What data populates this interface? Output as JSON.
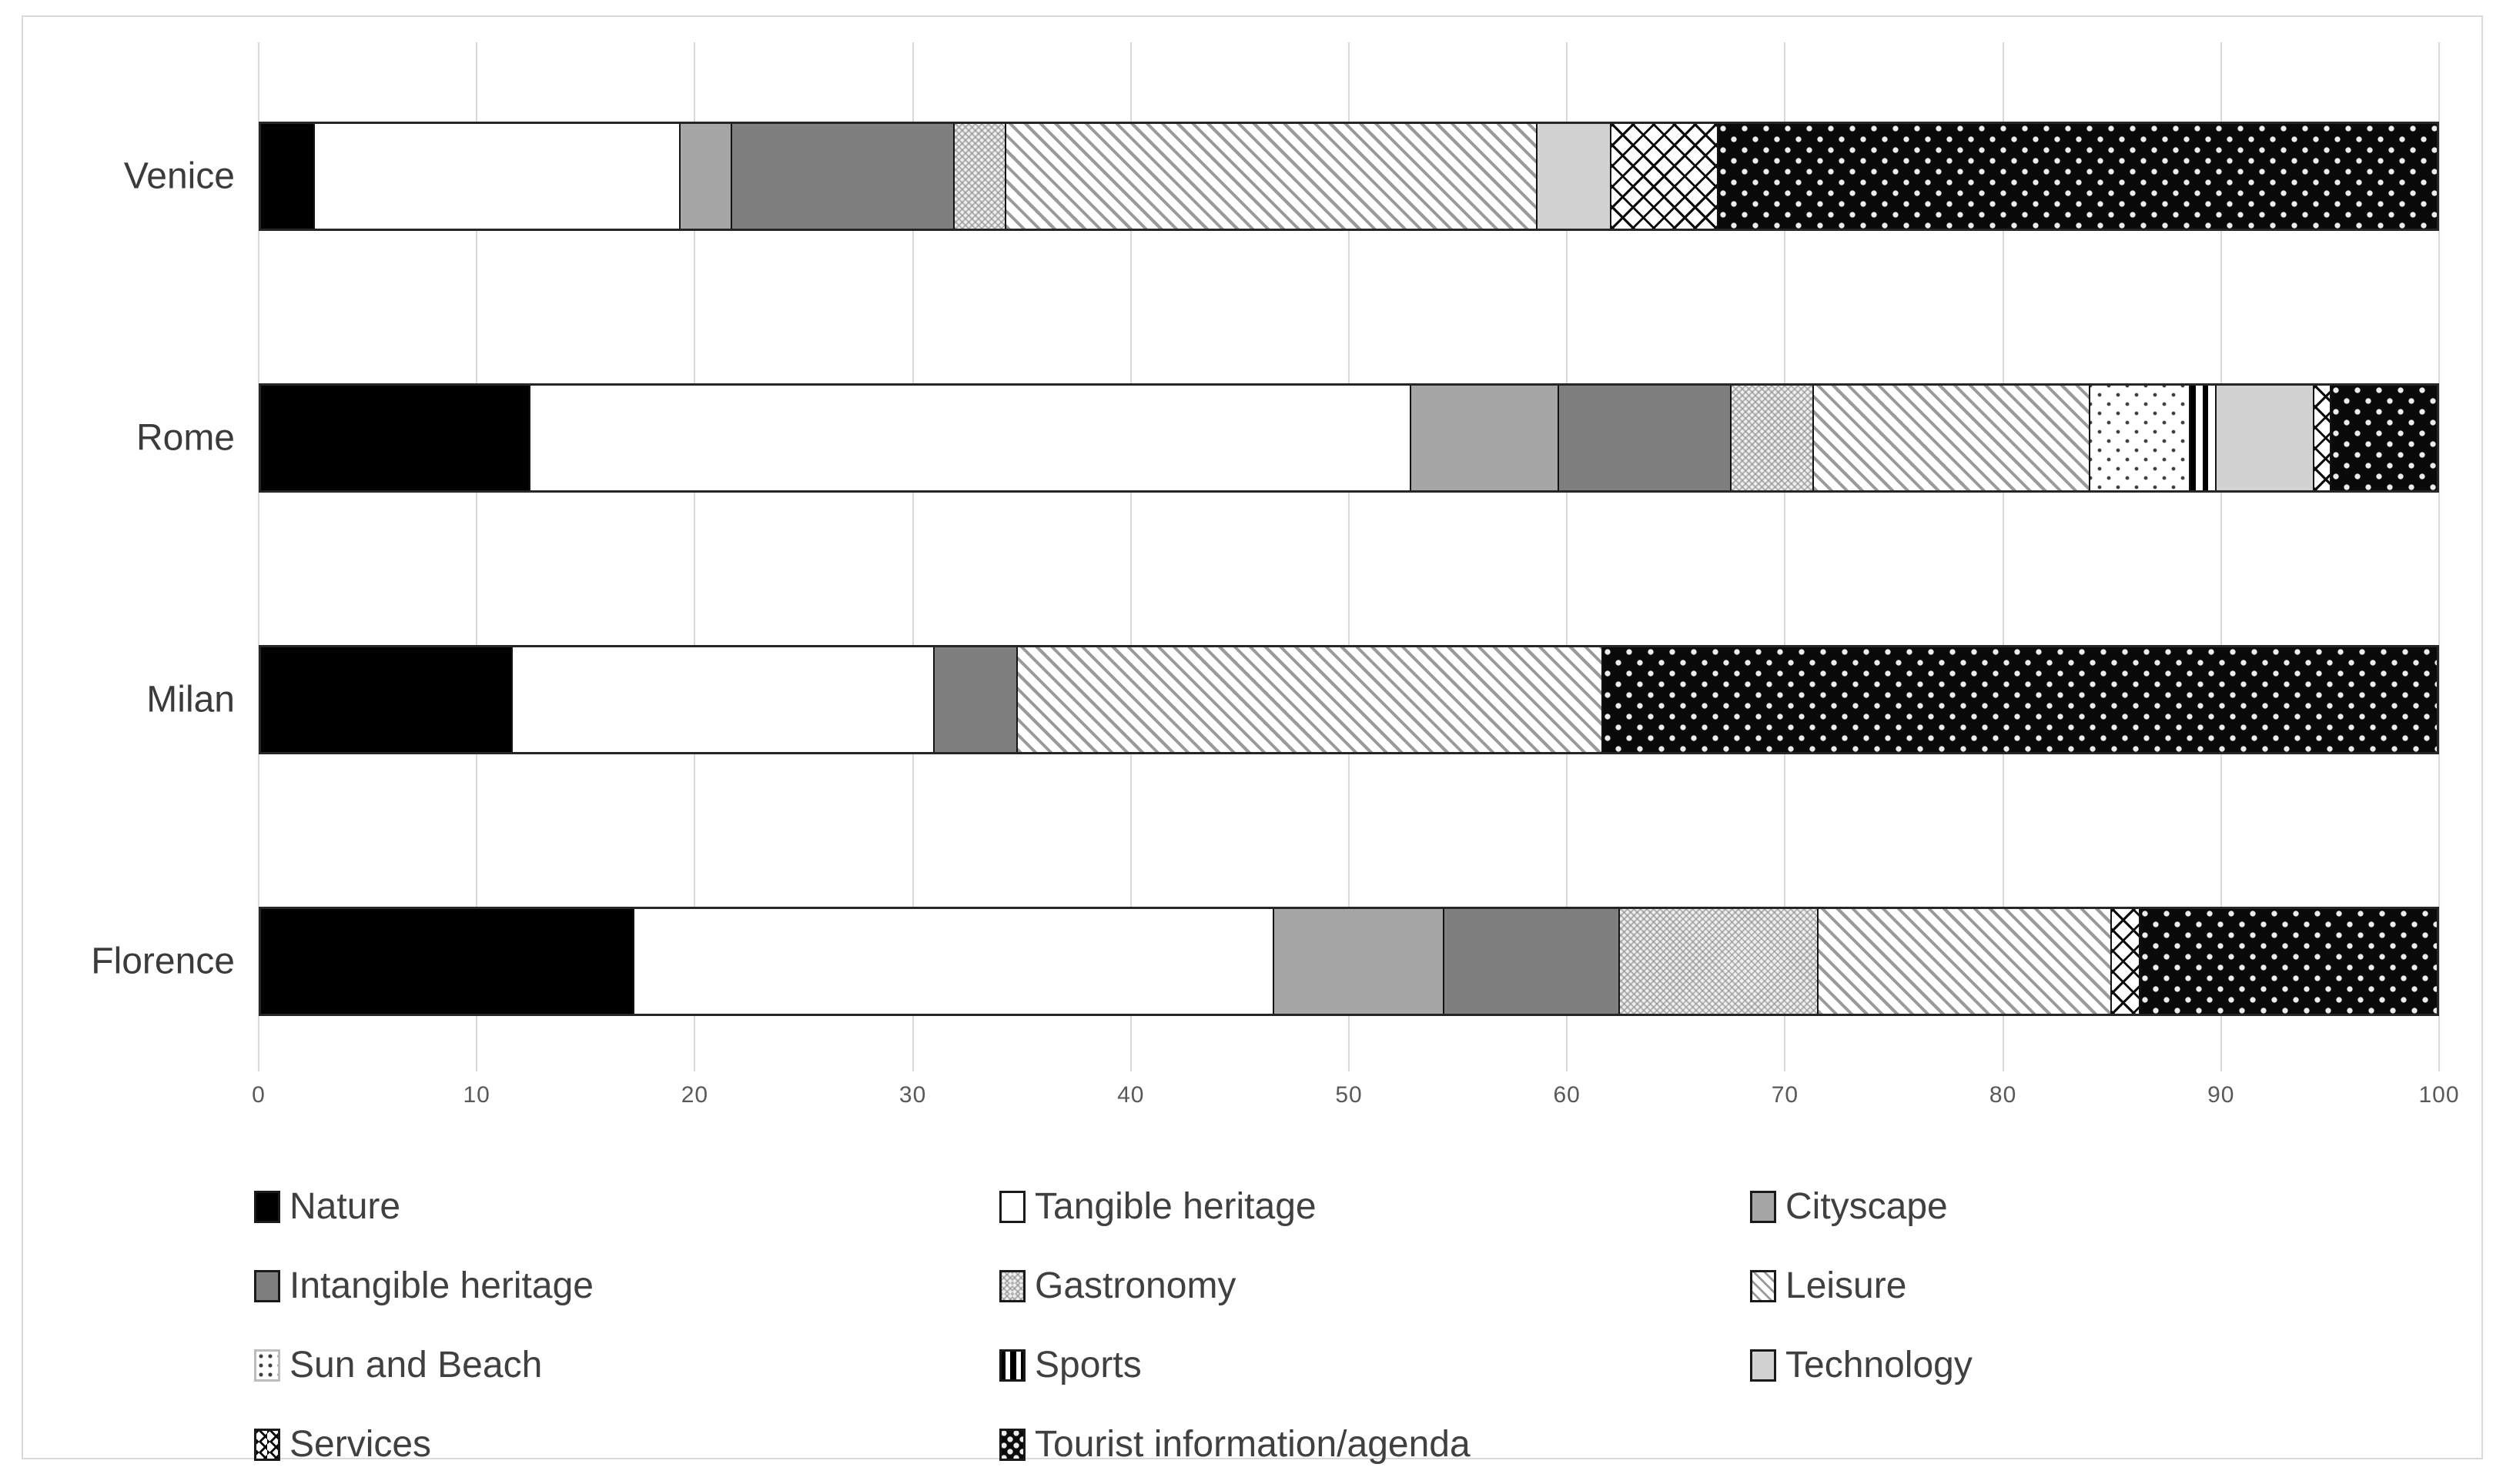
{
  "chart_data": {
    "type": "bar",
    "subtype": "horizontal-stacked-100",
    "title": "",
    "xlabel": "",
    "ylabel": "",
    "categories": [
      "Venice",
      "Rome",
      "Milan",
      "Florence"
    ],
    "series": [
      {
        "name": "Nature",
        "pattern": "nature",
        "values": [
          2.4,
          12.3,
          11.5,
          17.1
        ]
      },
      {
        "name": "Tangible heritage",
        "pattern": "tangible",
        "values": [
          16.8,
          40.5,
          19.4,
          29.4
        ]
      },
      {
        "name": "Cityscape",
        "pattern": "cityscape",
        "values": [
          2.4,
          6.8,
          0,
          7.8
        ]
      },
      {
        "name": "Intangible heritage",
        "pattern": "intangible",
        "values": [
          10.2,
          7.9,
          3.8,
          8.1
        ]
      },
      {
        "name": "Gastronomy",
        "pattern": "gastronomy",
        "values": [
          2.4,
          3.8,
          0,
          9.1
        ]
      },
      {
        "name": "Leisure",
        "pattern": "leisure",
        "values": [
          24.4,
          12.7,
          26.9,
          13.5
        ]
      },
      {
        "name": "Sun and Beach",
        "pattern": "sunbeach",
        "values": [
          0,
          4.6,
          0,
          0
        ]
      },
      {
        "name": "Sports",
        "pattern": "sports",
        "values": [
          0,
          1.2,
          0,
          0
        ]
      },
      {
        "name": "Technology",
        "pattern": "technology",
        "values": [
          3.4,
          4.5,
          0,
          0
        ]
      },
      {
        "name": "Services",
        "pattern": "services",
        "values": [
          4.9,
          0.8,
          0,
          1.3
        ]
      },
      {
        "name": "Tourist information/agenda",
        "pattern": "tourist",
        "values": [
          33.1,
          4.9,
          38.4,
          13.7
        ]
      }
    ],
    "x_axis": {
      "min": 0,
      "max": 100,
      "tick_step": 10,
      "ticks": [
        0,
        10,
        20,
        30,
        40,
        50,
        60,
        70,
        80,
        90,
        100
      ]
    },
    "grid": "vertical",
    "legend_position": "bottom",
    "legend_columns": 3,
    "colors": {
      "nature": "#000000",
      "cityscape": "#a6a6a6",
      "intangible": "#7f7f7f",
      "technology": "#d2d2d2",
      "gridline": "#d9d9d9",
      "text": "#404040",
      "tick_text": "#595959"
    }
  }
}
